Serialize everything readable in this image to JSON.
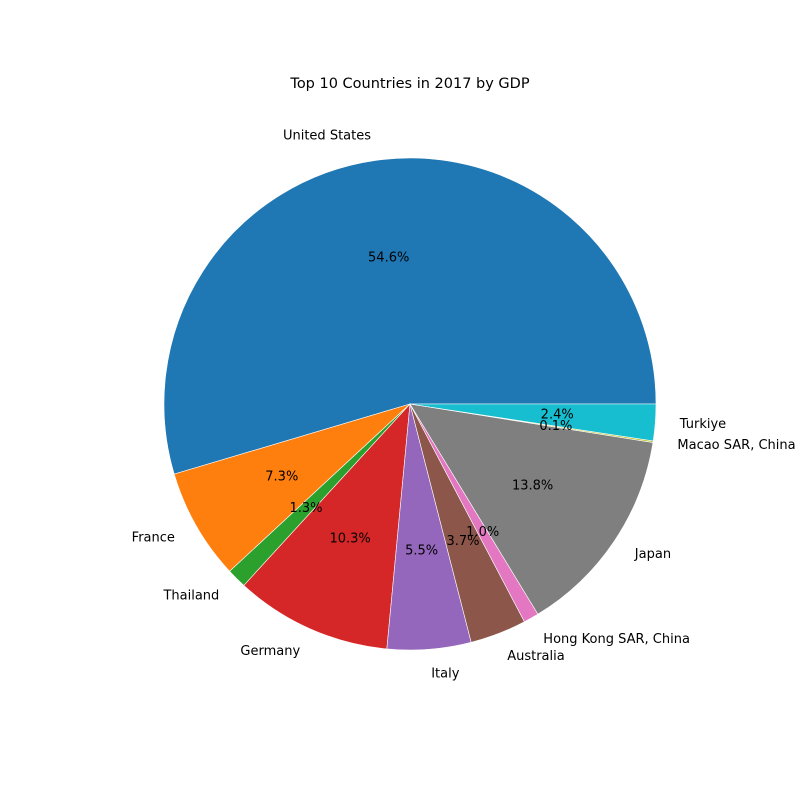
{
  "chart_data": {
    "type": "pie",
    "title": "Top 10 Countries in 2017 by GDP",
    "slices": [
      {
        "label": "United States",
        "percent": 54.6,
        "pct_text": "54.6%",
        "color": "#1f77b4"
      },
      {
        "label": "France",
        "percent": 7.3,
        "pct_text": "7.3%",
        "color": "#ff7f0e"
      },
      {
        "label": "Thailand",
        "percent": 1.3,
        "pct_text": "1.3%",
        "color": "#2ca02c"
      },
      {
        "label": "Germany",
        "percent": 10.3,
        "pct_text": "10.3%",
        "color": "#d62728"
      },
      {
        "label": "Italy",
        "percent": 5.5,
        "pct_text": "5.5%",
        "color": "#9467bd"
      },
      {
        "label": "Australia",
        "percent": 3.7,
        "pct_text": "3.7%",
        "color": "#8c564b"
      },
      {
        "label": "Hong Kong SAR, China",
        "percent": 1.0,
        "pct_text": "1.0%",
        "color": "#e377c2"
      },
      {
        "label": "Japan",
        "percent": 13.8,
        "pct_text": "13.8%",
        "color": "#7f7f7f"
      },
      {
        "label": "Macao SAR, China",
        "percent": 0.1,
        "pct_text": "0.1%",
        "color": "#bcbd22"
      },
      {
        "label": "Turkiye",
        "percent": 2.4,
        "pct_text": "2.4%",
        "color": "#17becf"
      }
    ]
  }
}
